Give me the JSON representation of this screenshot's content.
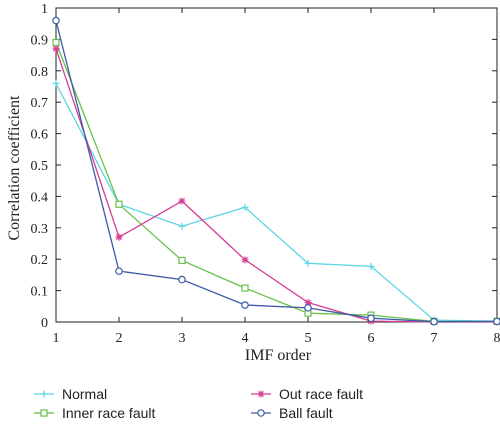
{
  "chart_data": {
    "type": "line",
    "xlabel": "IMF order",
    "ylabel": "Correlation coefficient",
    "x": [
      1,
      2,
      3,
      4,
      5,
      6,
      7,
      8
    ],
    "xlim": [
      1,
      8
    ],
    "ylim": [
      0,
      1
    ],
    "xticks": [
      "1",
      "2",
      "3",
      "4",
      "5",
      "6",
      "7",
      "8"
    ],
    "yticks": [
      "0",
      "0.1",
      "0.2",
      "0.3",
      "0.4",
      "0.5",
      "0.6",
      "0.7",
      "0.8",
      "0.9",
      "1"
    ],
    "grid": false,
    "legend_position": "bottom, outside plot, two columns",
    "series": [
      {
        "name": "Normal",
        "color": "#5cd6e6",
        "marker": "plus",
        "values": [
          0.76,
          0.375,
          0.305,
          0.365,
          0.187,
          0.177,
          0.006,
          0.003
        ]
      },
      {
        "name": "Inner race fault",
        "color": "#66c24a",
        "marker": "square",
        "values": [
          0.89,
          0.375,
          0.196,
          0.108,
          0.028,
          0.022,
          0.002,
          0.002
        ]
      },
      {
        "name": "Out race fault",
        "color": "#d63d94",
        "marker": "asterisk",
        "values": [
          0.87,
          0.27,
          0.385,
          0.198,
          0.062,
          0.003,
          0.0,
          0.0
        ]
      },
      {
        "name": "Ball fault",
        "color": "#3d5aa8",
        "marker": "circle",
        "values": [
          0.96,
          0.162,
          0.135,
          0.054,
          0.045,
          0.012,
          0.001,
          0.002
        ]
      }
    ]
  }
}
